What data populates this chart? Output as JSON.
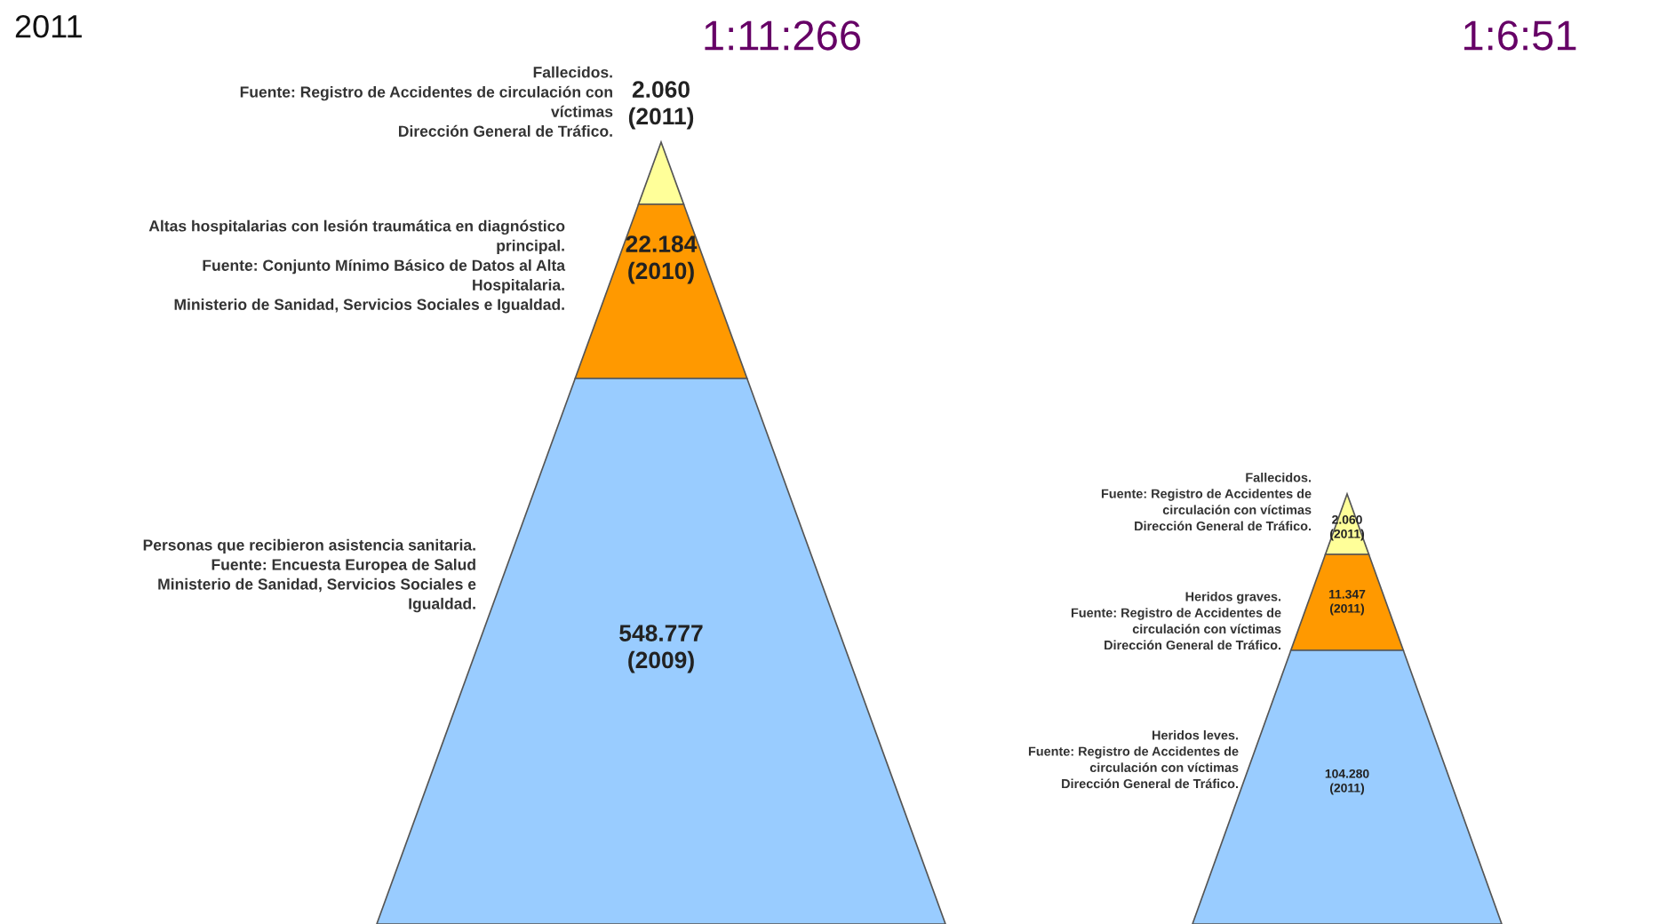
{
  "chart_data": [
    {
      "type": "other",
      "title": "1:11:266",
      "annotations": [
        "2011"
      ],
      "categories": [
        "Fallecidos.\nFuente: Registro de Accidentes de circulación con\nvíctimas\nDirección General de Tráfico.",
        "Altas hospitalarias con lesión traumática en diagnóstico\nprincipal.\nFuente: Conjunto Mínimo Básico de Datos al Alta\nHospitalaria.\nMinisterio de Sanidad, Servicios Sociales e Igualdad.",
        "Personas que recibieron asistencia sanitaria.\nFuente: Encuesta Europea de Salud\nMinisterio de Sanidad, Servicios Sociales e\nIgualdad."
      ],
      "values": [
        2060,
        22184,
        548777
      ],
      "value_labels": [
        "2.060\n(2011)",
        "22.184\n(2010)",
        "548.777\n(2009)"
      ],
      "colors": [
        "#ffff99",
        "#ff9900",
        "#99ccff"
      ]
    },
    {
      "type": "other",
      "title": "1:6:51",
      "categories": [
        "Fallecidos.\nFuente: Registro de Accidentes de\ncirculación con víctimas\nDirección General de Tráfico.",
        "Heridos graves.\nFuente: Registro de Accidentes de\ncirculación con víctimas\nDirección General de Tráfico.",
        "Heridos leves.\nFuente: Registro de Accidentes de\ncirculación con víctimas\nDirección General de Tráfico."
      ],
      "values": [
        2060,
        11347,
        104280
      ],
      "value_labels": [
        "2.060\n(2011)",
        "11.347\n(2011)",
        "104.280\n(2011)"
      ],
      "colors": [
        "#ffff99",
        "#ff9900",
        "#99ccff"
      ]
    }
  ]
}
